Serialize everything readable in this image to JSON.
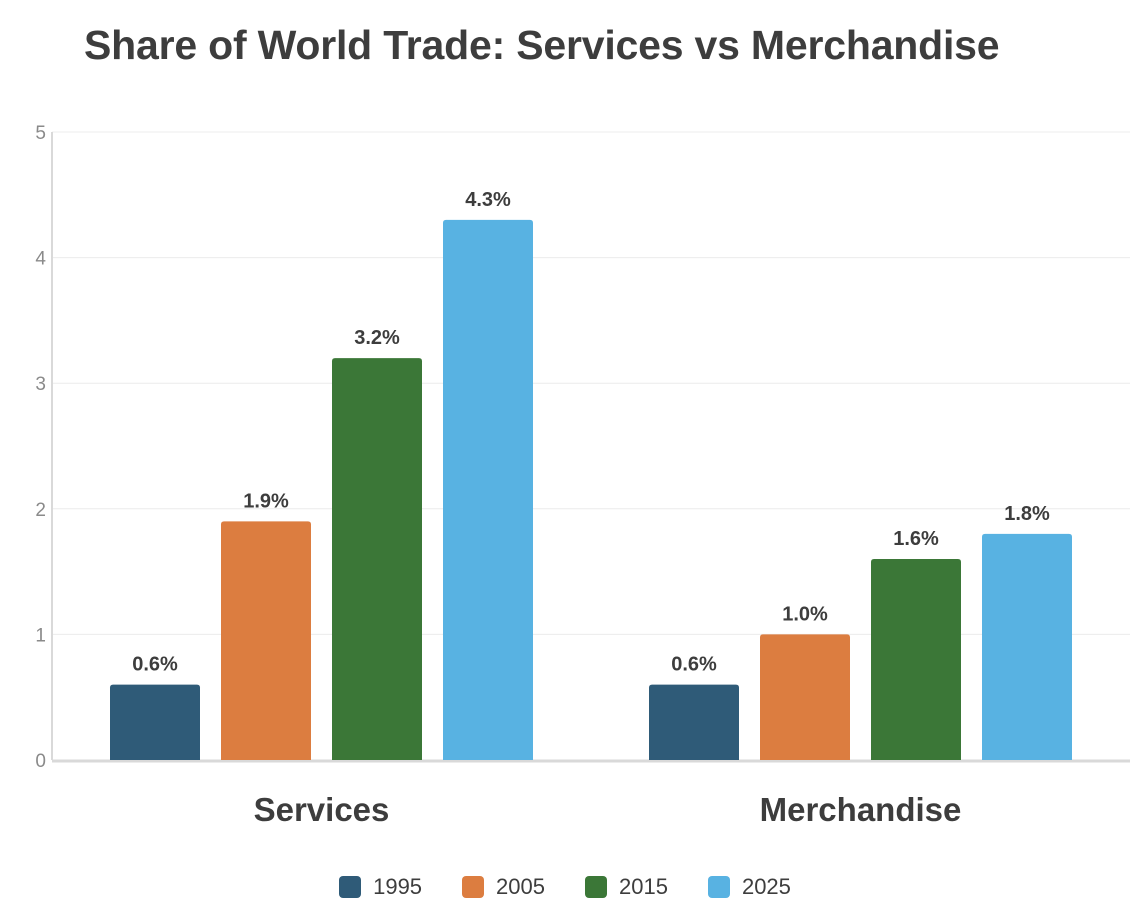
{
  "chart_data": {
    "type": "bar",
    "title": "Share of World Trade: Services vs Merchandise",
    "xlabel": "",
    "ylabel": "",
    "categories": [
      "Services",
      "Merchandise"
    ],
    "series": [
      {
        "name": "1995",
        "values": [
          0.6,
          0.6
        ],
        "labels": [
          "0.6%",
          "0.6%"
        ],
        "color": "#2f5b78"
      },
      {
        "name": "2005",
        "values": [
          1.9,
          1.0
        ],
        "labels": [
          "1.9%",
          "1.0%"
        ],
        "color": "#dc7d40"
      },
      {
        "name": "2015",
        "values": [
          3.2,
          1.6
        ],
        "labels": [
          "3.2%",
          "1.6%"
        ],
        "color": "#3b7737"
      },
      {
        "name": "2025",
        "values": [
          4.3,
          1.8
        ],
        "labels": [
          "4.3%",
          "1.8%"
        ],
        "color": "#58b2e2"
      }
    ],
    "yticks": [
      "0",
      "1",
      "2",
      "3",
      "4",
      "5"
    ],
    "ylim": [
      0,
      5
    ],
    "grid": true,
    "legend_position": "bottom-center"
  }
}
